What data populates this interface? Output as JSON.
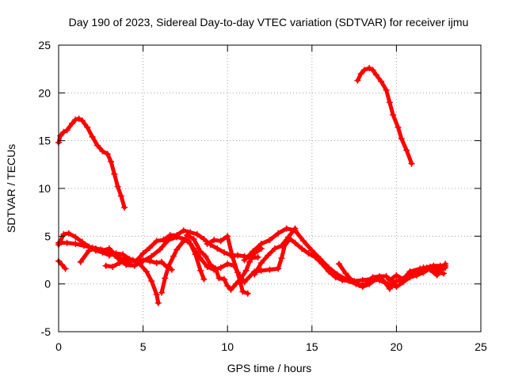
{
  "chart_data": {
    "type": "scatter",
    "title": "Day 190 of 2023, Sidereal Day-to-day VTEC variation (SDTVAR) for receiver ijmu",
    "xlabel": "GPS time / hours",
    "ylabel": "SDTVAR / TECUs",
    "xlim": [
      0,
      25
    ],
    "ylim": [
      -5,
      25
    ],
    "xticks": [
      0,
      5,
      10,
      15,
      20,
      25
    ],
    "yticks": [
      -5,
      0,
      5,
      10,
      15,
      20,
      25
    ],
    "xtick_labels": [
      "0",
      "5",
      "10",
      "15",
      "20",
      "25"
    ],
    "ytick_labels": [
      "-5",
      "0",
      "5",
      "10",
      "15",
      "20",
      "25"
    ],
    "grid": true,
    "marker": "plus",
    "color": "#ff0000",
    "series": [
      {
        "name": "arc-1",
        "points": [
          [
            0.0,
            14.8
          ],
          [
            0.1,
            15.5
          ],
          [
            0.3,
            15.9
          ],
          [
            0.5,
            16.1
          ],
          [
            0.8,
            16.8
          ],
          [
            1.0,
            17.2
          ],
          [
            1.2,
            17.3
          ],
          [
            1.4,
            17.1
          ],
          [
            1.7,
            16.4
          ],
          [
            2.0,
            15.4
          ],
          [
            2.3,
            14.5
          ],
          [
            2.6,
            13.9
          ],
          [
            2.9,
            13.6
          ],
          [
            3.1,
            12.8
          ],
          [
            3.3,
            11.5
          ],
          [
            3.5,
            10.2
          ],
          [
            3.7,
            9.2
          ],
          [
            3.9,
            8.0
          ]
        ]
      },
      {
        "name": "arc-2",
        "points": [
          [
            17.7,
            21.3
          ],
          [
            17.9,
            22.0
          ],
          [
            18.1,
            22.4
          ],
          [
            18.4,
            22.6
          ],
          [
            18.6,
            22.4
          ],
          [
            18.8,
            21.9
          ],
          [
            19.1,
            21.2
          ],
          [
            19.4,
            20.3
          ],
          [
            19.6,
            19.0
          ],
          [
            19.8,
            17.7
          ],
          [
            20.1,
            16.4
          ],
          [
            20.3,
            15.2
          ],
          [
            20.6,
            14.0
          ],
          [
            20.9,
            12.6
          ]
        ]
      },
      {
        "name": "arc-3",
        "points": [
          [
            0.0,
            2.4
          ],
          [
            0.2,
            2.0
          ],
          [
            0.4,
            1.6
          ]
        ]
      },
      {
        "name": "arc-4",
        "points": [
          [
            0.0,
            4.1
          ],
          [
            0.3,
            5.2
          ],
          [
            0.6,
            5.3
          ],
          [
            1.0,
            4.9
          ],
          [
            1.4,
            4.4
          ],
          [
            1.8,
            3.9
          ],
          [
            2.2,
            3.5
          ],
          [
            2.6,
            3.3
          ],
          [
            3.0,
            3.0
          ],
          [
            3.4,
            3.2
          ],
          [
            3.8,
            3.1
          ],
          [
            4.2,
            2.6
          ],
          [
            4.6,
            2.4
          ],
          [
            5.0,
            2.5
          ],
          [
            5.4,
            2.4
          ],
          [
            5.8,
            2.2
          ],
          [
            6.1,
            2.3
          ],
          [
            6.4,
            1.8
          ],
          [
            6.7,
            1.5
          ]
        ]
      },
      {
        "name": "arc-5",
        "points": [
          [
            0.0,
            4.3
          ],
          [
            0.5,
            4.3
          ],
          [
            1.0,
            4.2
          ],
          [
            1.5,
            4.0
          ],
          [
            2.0,
            3.8
          ],
          [
            2.5,
            3.6
          ],
          [
            3.0,
            3.4
          ],
          [
            3.5,
            2.7
          ],
          [
            4.0,
            2.0
          ],
          [
            4.5,
            1.9
          ],
          [
            5.0,
            2.4
          ],
          [
            5.5,
            2.9
          ],
          [
            6.0,
            3.6
          ],
          [
            6.5,
            4.6
          ],
          [
            7.0,
            4.9
          ],
          [
            7.5,
            4.7
          ],
          [
            7.8,
            4.2
          ],
          [
            8.1,
            3.1
          ],
          [
            8.4,
            1.4
          ],
          [
            8.6,
            0.5
          ]
        ]
      },
      {
        "name": "arc-6",
        "points": [
          [
            1.3,
            2.3
          ],
          [
            1.8,
            3.5
          ],
          [
            2.2,
            3.7
          ],
          [
            2.6,
            3.5
          ],
          [
            3.0,
            3.7
          ],
          [
            3.4,
            3.0
          ],
          [
            3.7,
            2.6
          ],
          [
            4.0,
            2.6
          ],
          [
            4.4,
            2.5
          ],
          [
            4.8,
            2.1
          ],
          [
            5.2,
            1.3
          ],
          [
            5.5,
            0.3
          ],
          [
            5.8,
            -1.1
          ],
          [
            5.9,
            -2.0
          ]
        ]
      },
      {
        "name": "arc-7",
        "points": [
          [
            2.8,
            1.9
          ],
          [
            3.2,
            1.8
          ],
          [
            3.6,
            2.2
          ],
          [
            4.0,
            2.3
          ],
          [
            4.6,
            2.4
          ],
          [
            5.0,
            3.2
          ],
          [
            5.4,
            3.8
          ],
          [
            5.8,
            4.5
          ],
          [
            6.2,
            4.6
          ],
          [
            6.6,
            5.1
          ],
          [
            7.0,
            5.1
          ],
          [
            7.4,
            5.6
          ],
          [
            7.8,
            5.4
          ],
          [
            8.2,
            5.2
          ],
          [
            8.6,
            4.7
          ],
          [
            9.0,
            4.1
          ],
          [
            9.4,
            3.7
          ],
          [
            9.8,
            3.3
          ],
          [
            10.2,
            3.0
          ],
          [
            10.6,
            3.0
          ],
          [
            11.0,
            2.9
          ],
          [
            11.4,
            2.7
          ],
          [
            11.8,
            2.8
          ]
        ]
      },
      {
        "name": "arc-8",
        "points": [
          [
            6.1,
            -0.9
          ],
          [
            6.3,
            0.6
          ],
          [
            6.5,
            1.8
          ],
          [
            6.8,
            2.9
          ],
          [
            7.0,
            3.6
          ],
          [
            7.4,
            4.5
          ],
          [
            7.7,
            4.5
          ],
          [
            8.0,
            3.7
          ],
          [
            8.4,
            2.7
          ],
          [
            8.8,
            1.8
          ],
          [
            9.2,
            1.5
          ],
          [
            9.6,
            1.7
          ],
          [
            10.0,
            2.1
          ],
          [
            10.4,
            1.9
          ],
          [
            10.7,
            0.9
          ],
          [
            10.9,
            0.4
          ]
        ]
      },
      {
        "name": "arc-9",
        "points": [
          [
            7.6,
            5.1
          ],
          [
            8.0,
            4.7
          ],
          [
            8.4,
            3.4
          ],
          [
            8.7,
            2.9
          ],
          [
            9.0,
            2.0
          ],
          [
            9.3,
            1.6
          ],
          [
            9.5,
            0.6
          ],
          [
            9.8,
            0.5
          ],
          [
            10.0,
            -0.2
          ],
          [
            10.2,
            -0.6
          ],
          [
            10.5,
            0.0
          ],
          [
            10.8,
            0.6
          ],
          [
            11.1,
            1.4
          ],
          [
            11.3,
            2.3
          ],
          [
            11.6,
            3.2
          ],
          [
            12.0,
            3.7
          ]
        ]
      },
      {
        "name": "arc-10",
        "points": [
          [
            8.8,
            4.2
          ],
          [
            9.2,
            4.6
          ],
          [
            9.6,
            4.5
          ],
          [
            10.0,
            5.0
          ],
          [
            10.3,
            2.8
          ],
          [
            10.6,
            1.2
          ],
          [
            10.9,
            -0.8
          ],
          [
            11.2,
            -1.0
          ]
        ]
      },
      {
        "name": "arc-11",
        "points": [
          [
            11.0,
            2.5
          ],
          [
            11.5,
            3.4
          ],
          [
            12.0,
            4.2
          ],
          [
            12.5,
            4.6
          ],
          [
            13.0,
            5.3
          ],
          [
            13.5,
            5.8
          ],
          [
            14.0,
            5.6
          ],
          [
            14.5,
            4.5
          ],
          [
            15.0,
            3.5
          ],
          [
            15.5,
            2.6
          ],
          [
            16.0,
            1.7
          ],
          [
            16.5,
            1.0
          ],
          [
            17.0,
            0.5
          ],
          [
            17.5,
            0.3
          ],
          [
            18.0,
            0.4
          ],
          [
            18.5,
            0.5
          ],
          [
            19.0,
            0.4
          ],
          [
            19.5,
            0.0
          ],
          [
            20.0,
            -0.3
          ],
          [
            20.4,
            0.2
          ],
          [
            20.8,
            0.7
          ],
          [
            21.2,
            0.9
          ],
          [
            21.6,
            1.2
          ],
          [
            22.0,
            1.6
          ],
          [
            22.4,
            1.2
          ],
          [
            22.8,
            1.1
          ]
        ]
      },
      {
        "name": "arc-12",
        "points": [
          [
            11.0,
            0.2
          ],
          [
            11.6,
            1.3
          ],
          [
            12.0,
            1.4
          ],
          [
            12.5,
            1.5
          ],
          [
            13.0,
            1.6
          ],
          [
            13.2,
            2.7
          ],
          [
            13.4,
            4.1
          ],
          [
            13.7,
            4.7
          ],
          [
            14.0,
            4.3
          ],
          [
            14.4,
            3.7
          ],
          [
            14.8,
            3.2
          ],
          [
            15.2,
            2.8
          ],
          [
            15.6,
            2.1
          ],
          [
            16.0,
            1.3
          ],
          [
            16.4,
            0.7
          ],
          [
            16.8,
            0.4
          ],
          [
            17.2,
            0.3
          ],
          [
            17.6,
            0.0
          ],
          [
            18.0,
            -0.3
          ],
          [
            18.4,
            0.0
          ],
          [
            18.8,
            0.5
          ],
          [
            19.2,
            0.4
          ],
          [
            19.6,
            -0.5
          ],
          [
            20.0,
            0.3
          ],
          [
            20.4,
            0.5
          ],
          [
            20.8,
            1.3
          ],
          [
            21.4,
            1.6
          ],
          [
            22.0,
            1.8
          ],
          [
            22.6,
            1.5
          ],
          [
            22.9,
            1.7
          ]
        ]
      },
      {
        "name": "arc-13",
        "points": [
          [
            11.6,
            1.0
          ],
          [
            12.0,
            2.2
          ],
          [
            12.4,
            3.0
          ],
          [
            12.8,
            3.7
          ],
          [
            13.2,
            4.0
          ],
          [
            13.6,
            4.9
          ],
          [
            14.0,
            5.8
          ]
        ]
      },
      {
        "name": "arc-14",
        "points": [
          [
            16.6,
            2.1
          ],
          [
            17.0,
            1.1
          ],
          [
            17.4,
            0.3
          ],
          [
            17.8,
            -0.1
          ],
          [
            18.2,
            0.0
          ],
          [
            18.6,
            0.7
          ],
          [
            19.0,
            0.8
          ],
          [
            19.4,
            0.8
          ],
          [
            19.8,
            0.2
          ],
          [
            20.2,
            0.4
          ],
          [
            20.6,
            0.8
          ],
          [
            21.0,
            0.9
          ],
          [
            21.4,
            1.3
          ],
          [
            21.8,
            1.7
          ],
          [
            22.2,
            1.9
          ],
          [
            22.6,
            1.9
          ],
          [
            22.9,
            1.9
          ]
        ]
      },
      {
        "name": "arc-15",
        "points": [
          [
            19.6,
            0.4
          ],
          [
            20.0,
            0.9
          ],
          [
            20.4,
            0.5
          ],
          [
            20.8,
            1.0
          ],
          [
            21.2,
            1.1
          ],
          [
            21.6,
            1.7
          ],
          [
            22.0,
            1.5
          ],
          [
            22.4,
            0.9
          ],
          [
            22.9,
            2.1
          ]
        ]
      }
    ]
  }
}
